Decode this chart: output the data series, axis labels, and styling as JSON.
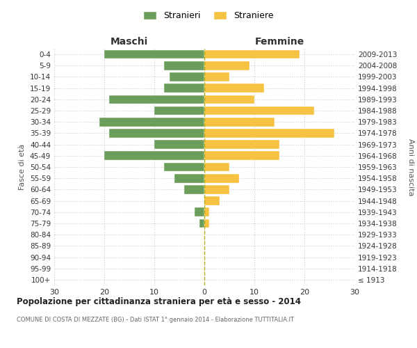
{
  "age_groups": [
    "100+",
    "95-99",
    "90-94",
    "85-89",
    "80-84",
    "75-79",
    "70-74",
    "65-69",
    "60-64",
    "55-59",
    "50-54",
    "45-49",
    "40-44",
    "35-39",
    "30-34",
    "25-29",
    "20-24",
    "15-19",
    "10-14",
    "5-9",
    "0-4"
  ],
  "birth_years": [
    "≤ 1913",
    "1914-1918",
    "1919-1923",
    "1924-1928",
    "1929-1933",
    "1934-1938",
    "1939-1943",
    "1944-1948",
    "1949-1953",
    "1954-1958",
    "1959-1963",
    "1964-1968",
    "1969-1973",
    "1974-1978",
    "1979-1983",
    "1984-1988",
    "1989-1993",
    "1994-1998",
    "1999-2003",
    "2004-2008",
    "2009-2013"
  ],
  "maschi": [
    0,
    0,
    0,
    0,
    0,
    1,
    2,
    0,
    4,
    6,
    8,
    20,
    10,
    19,
    21,
    10,
    19,
    8,
    7,
    8,
    20
  ],
  "femmine": [
    0,
    0,
    0,
    0,
    0,
    1,
    1,
    3,
    5,
    7,
    5,
    15,
    15,
    26,
    14,
    22,
    10,
    12,
    5,
    9,
    19
  ],
  "maschi_color": "#6a9e5a",
  "femmine_color": "#f5c242",
  "title": "Popolazione per cittadinanza straniera per età e sesso - 2014",
  "subtitle": "COMUNE DI COSTA DI MEZZATE (BG) - Dati ISTAT 1° gennaio 2014 - Elaborazione TUTTITALIA.IT",
  "xlabel_left": "Maschi",
  "xlabel_right": "Femmine",
  "ylabel_left": "Fasce di età",
  "ylabel_right": "Anni di nascita",
  "legend_male": "Stranieri",
  "legend_female": "Straniere",
  "xlim": 30,
  "background_color": "#ffffff",
  "grid_color": "#cccccc"
}
